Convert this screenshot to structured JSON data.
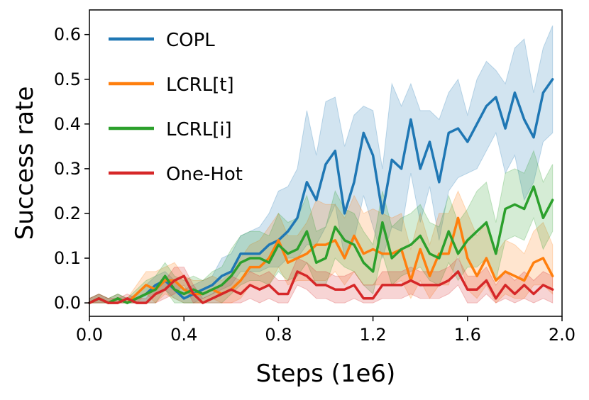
{
  "chart_data": {
    "type": "line",
    "title": "",
    "xlabel": "Steps (1e6)",
    "ylabel": "Success rate",
    "xlim": [
      0.0,
      2.0
    ],
    "ylim": [
      -0.03,
      0.655
    ],
    "xticks": [
      0.0,
      0.4,
      0.8,
      1.2,
      1.6,
      2.0
    ],
    "xtick_labels": [
      "0.0",
      "0.4",
      "0.8",
      "1.2",
      "1.6",
      "2.0"
    ],
    "yticks": [
      0.0,
      0.1,
      0.2,
      0.3,
      0.4,
      0.5,
      0.6
    ],
    "ytick_labels": [
      "0.0",
      "0.1",
      "0.2",
      "0.3",
      "0.4",
      "0.5",
      "0.6"
    ],
    "grid": false,
    "legend_position": "top-left",
    "x": [
      0.0,
      0.04,
      0.08,
      0.12,
      0.16,
      0.2,
      0.24,
      0.28,
      0.32,
      0.36,
      0.4,
      0.44,
      0.48,
      0.52,
      0.56,
      0.6,
      0.64,
      0.68,
      0.72,
      0.76,
      0.8,
      0.84,
      0.88,
      0.92,
      0.96,
      1.0,
      1.04,
      1.08,
      1.12,
      1.16,
      1.2,
      1.24,
      1.28,
      1.32,
      1.36,
      1.4,
      1.44,
      1.48,
      1.52,
      1.56,
      1.6,
      1.64,
      1.68,
      1.72,
      1.76,
      1.8,
      1.84,
      1.88,
      1.92,
      1.96
    ],
    "series": [
      {
        "name": "COPL",
        "color": "#1f77b4",
        "values": [
          0.0,
          0.01,
          0.0,
          0.01,
          0.0,
          0.01,
          0.02,
          0.04,
          0.05,
          0.03,
          0.01,
          0.02,
          0.03,
          0.04,
          0.06,
          0.07,
          0.11,
          0.11,
          0.11,
          0.13,
          0.14,
          0.16,
          0.19,
          0.27,
          0.23,
          0.31,
          0.34,
          0.2,
          0.27,
          0.38,
          0.33,
          0.2,
          0.32,
          0.3,
          0.41,
          0.3,
          0.36,
          0.27,
          0.38,
          0.39,
          0.36,
          0.4,
          0.44,
          0.46,
          0.39,
          0.47,
          0.41,
          0.37,
          0.47,
          0.5
        ],
        "upper": [
          0.01,
          0.02,
          0.01,
          0.02,
          0.01,
          0.02,
          0.04,
          0.06,
          0.07,
          0.05,
          0.03,
          0.04,
          0.05,
          0.06,
          0.1,
          0.11,
          0.15,
          0.16,
          0.17,
          0.2,
          0.25,
          0.26,
          0.3,
          0.43,
          0.33,
          0.45,
          0.46,
          0.35,
          0.42,
          0.44,
          0.43,
          0.3,
          0.49,
          0.44,
          0.49,
          0.43,
          0.43,
          0.41,
          0.47,
          0.5,
          0.42,
          0.5,
          0.54,
          0.52,
          0.49,
          0.57,
          0.59,
          0.47,
          0.57,
          0.62
        ],
        "lower": [
          0.0,
          0.0,
          0.0,
          0.0,
          0.0,
          0.0,
          0.0,
          0.02,
          0.03,
          0.01,
          0.0,
          0.0,
          0.01,
          0.02,
          0.03,
          0.04,
          0.07,
          0.07,
          0.07,
          0.08,
          0.08,
          0.1,
          0.1,
          0.13,
          0.13,
          0.17,
          0.22,
          0.1,
          0.14,
          0.24,
          0.17,
          0.1,
          0.17,
          0.16,
          0.29,
          0.18,
          0.26,
          0.14,
          0.25,
          0.28,
          0.29,
          0.3,
          0.34,
          0.38,
          0.29,
          0.33,
          0.23,
          0.27,
          0.36,
          0.38
        ]
      },
      {
        "name": "LCRL[t]",
        "color": "#ff7f0e",
        "values": [
          0.0,
          0.01,
          0.0,
          0.01,
          0.0,
          0.02,
          0.04,
          0.03,
          0.05,
          0.05,
          0.03,
          0.02,
          0.02,
          0.03,
          0.02,
          0.03,
          0.05,
          0.08,
          0.08,
          0.1,
          0.14,
          0.09,
          0.1,
          0.11,
          0.13,
          0.13,
          0.14,
          0.1,
          0.15,
          0.11,
          0.12,
          0.11,
          0.11,
          0.12,
          0.05,
          0.12,
          0.06,
          0.11,
          0.11,
          0.19,
          0.1,
          0.06,
          0.1,
          0.05,
          0.07,
          0.06,
          0.05,
          0.09,
          0.1,
          0.06
        ],
        "upper": [
          0.01,
          0.02,
          0.01,
          0.02,
          0.01,
          0.04,
          0.07,
          0.07,
          0.08,
          0.09,
          0.06,
          0.05,
          0.05,
          0.06,
          0.05,
          0.07,
          0.1,
          0.13,
          0.14,
          0.17,
          0.2,
          0.15,
          0.15,
          0.18,
          0.23,
          0.22,
          0.22,
          0.19,
          0.24,
          0.2,
          0.21,
          0.2,
          0.19,
          0.2,
          0.12,
          0.2,
          0.13,
          0.2,
          0.2,
          0.25,
          0.2,
          0.15,
          0.18,
          0.11,
          0.14,
          0.13,
          0.11,
          0.16,
          0.18,
          0.13
        ],
        "lower": [
          0.0,
          0.0,
          0.0,
          0.0,
          0.0,
          0.0,
          0.02,
          0.0,
          0.02,
          0.01,
          0.0,
          0.0,
          0.0,
          0.01,
          0.0,
          0.0,
          0.01,
          0.04,
          0.03,
          0.04,
          0.08,
          0.04,
          0.05,
          0.05,
          0.05,
          0.05,
          0.07,
          0.04,
          0.07,
          0.04,
          0.04,
          0.04,
          0.04,
          0.05,
          0.01,
          0.05,
          0.01,
          0.04,
          0.04,
          0.11,
          0.03,
          0.01,
          0.04,
          0.0,
          0.02,
          0.01,
          0.01,
          0.04,
          0.04,
          0.02
        ]
      },
      {
        "name": "LCRL[i]",
        "color": "#2ca02c",
        "values": [
          0.0,
          0.01,
          0.0,
          0.01,
          0.0,
          0.01,
          0.02,
          0.03,
          0.06,
          0.03,
          0.02,
          0.03,
          0.02,
          0.03,
          0.04,
          0.06,
          0.09,
          0.1,
          0.1,
          0.09,
          0.13,
          0.11,
          0.12,
          0.16,
          0.09,
          0.1,
          0.17,
          0.14,
          0.13,
          0.09,
          0.07,
          0.18,
          0.1,
          0.12,
          0.13,
          0.15,
          0.11,
          0.1,
          0.16,
          0.11,
          0.14,
          0.16,
          0.18,
          0.11,
          0.21,
          0.22,
          0.21,
          0.26,
          0.19,
          0.23
        ],
        "upper": [
          0.01,
          0.02,
          0.01,
          0.02,
          0.01,
          0.03,
          0.05,
          0.06,
          0.09,
          0.06,
          0.05,
          0.06,
          0.05,
          0.07,
          0.08,
          0.12,
          0.15,
          0.16,
          0.16,
          0.15,
          0.2,
          0.18,
          0.19,
          0.24,
          0.16,
          0.17,
          0.25,
          0.21,
          0.2,
          0.16,
          0.13,
          0.25,
          0.17,
          0.19,
          0.2,
          0.22,
          0.18,
          0.17,
          0.24,
          0.18,
          0.21,
          0.25,
          0.27,
          0.18,
          0.29,
          0.3,
          0.29,
          0.34,
          0.27,
          0.31
        ],
        "lower": [
          0.0,
          0.0,
          0.0,
          0.0,
          0.0,
          0.0,
          0.0,
          0.0,
          0.03,
          0.0,
          0.0,
          0.0,
          0.0,
          0.0,
          0.0,
          0.02,
          0.04,
          0.05,
          0.05,
          0.04,
          0.07,
          0.05,
          0.06,
          0.09,
          0.04,
          0.04,
          0.1,
          0.08,
          0.07,
          0.04,
          0.02,
          0.11,
          0.04,
          0.06,
          0.07,
          0.08,
          0.05,
          0.04,
          0.09,
          0.05,
          0.08,
          0.08,
          0.1,
          0.05,
          0.14,
          0.15,
          0.14,
          0.19,
          0.12,
          0.16
        ]
      },
      {
        "name": "One-Hot",
        "color": "#d62728",
        "values": [
          0.0,
          0.01,
          0.0,
          0.0,
          0.01,
          0.0,
          0.0,
          0.02,
          0.03,
          0.05,
          0.06,
          0.02,
          0.0,
          0.01,
          0.02,
          0.03,
          0.02,
          0.04,
          0.03,
          0.04,
          0.02,
          0.02,
          0.07,
          0.06,
          0.04,
          0.04,
          0.03,
          0.03,
          0.04,
          0.01,
          0.01,
          0.04,
          0.04,
          0.04,
          0.05,
          0.04,
          0.04,
          0.04,
          0.05,
          0.07,
          0.03,
          0.03,
          0.05,
          0.01,
          0.04,
          0.02,
          0.04,
          0.02,
          0.04,
          0.03
        ],
        "upper": [
          0.01,
          0.02,
          0.01,
          0.01,
          0.02,
          0.01,
          0.01,
          0.04,
          0.05,
          0.08,
          0.08,
          0.04,
          0.01,
          0.02,
          0.04,
          0.06,
          0.05,
          0.07,
          0.06,
          0.07,
          0.05,
          0.05,
          0.1,
          0.09,
          0.07,
          0.07,
          0.06,
          0.06,
          0.07,
          0.04,
          0.04,
          0.07,
          0.07,
          0.07,
          0.08,
          0.07,
          0.07,
          0.07,
          0.08,
          0.1,
          0.06,
          0.06,
          0.08,
          0.04,
          0.07,
          0.05,
          0.07,
          0.05,
          0.07,
          0.06
        ],
        "lower": [
          0.0,
          0.0,
          0.0,
          0.0,
          0.0,
          0.0,
          0.0,
          0.0,
          0.01,
          0.02,
          0.04,
          0.0,
          0.0,
          0.0,
          0.0,
          0.0,
          0.0,
          0.01,
          0.0,
          0.01,
          0.0,
          0.0,
          0.04,
          0.03,
          0.01,
          0.01,
          0.0,
          0.0,
          0.01,
          0.0,
          0.0,
          0.01,
          0.01,
          0.01,
          0.02,
          0.01,
          0.01,
          0.01,
          0.02,
          0.04,
          0.0,
          0.0,
          0.02,
          0.0,
          0.01,
          0.0,
          0.01,
          0.0,
          0.01,
          0.0
        ]
      }
    ]
  }
}
